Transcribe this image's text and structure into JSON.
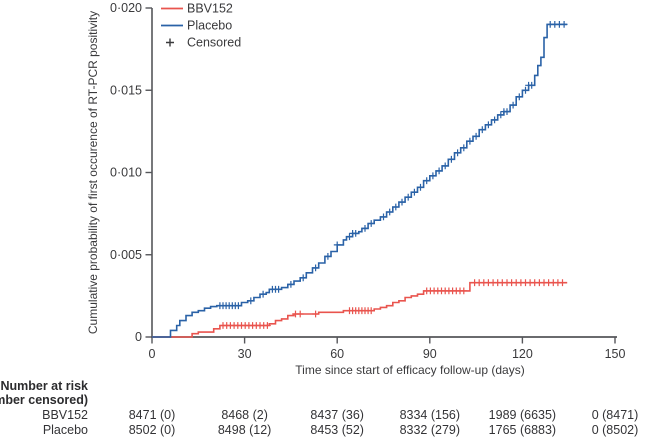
{
  "chart_data": {
    "type": "line",
    "subtype": "kaplan-meier-step",
    "title": "",
    "xlabel": "Time since start of efficacy follow-up (days)",
    "ylabel": "Cumulative probability of first occurence of RT-PCR positivity",
    "xlim": [
      0,
      150
    ],
    "ylim": [
      0,
      0.02
    ],
    "grid": false,
    "legend_position": "top-left-inside",
    "censored_label": "Censored",
    "censored_marker": "+",
    "xticks": [
      {
        "v": 0,
        "label": "0"
      },
      {
        "v": 30,
        "label": "30"
      },
      {
        "v": 60,
        "label": "60"
      },
      {
        "v": 90,
        "label": "90"
      },
      {
        "v": 120,
        "label": "120"
      },
      {
        "v": 150,
        "label": "150"
      }
    ],
    "yticks": [
      {
        "v": 0,
        "label": "0"
      },
      {
        "v": 0.005,
        "label": "0·005"
      },
      {
        "v": 0.01,
        "label": "0·010"
      },
      {
        "v": 0.015,
        "label": "0·015"
      },
      {
        "v": 0.02,
        "label": "0·020"
      }
    ],
    "series": [
      {
        "name": "BBV152",
        "color": "#e9544e",
        "steps": [
          [
            0,
            0
          ],
          [
            13,
            0.0002
          ],
          [
            15,
            0.0003
          ],
          [
            20,
            0.0005
          ],
          [
            22,
            0.0007
          ],
          [
            38,
            0.0008
          ],
          [
            40,
            0.001
          ],
          [
            42,
            0.0011
          ],
          [
            44,
            0.0013
          ],
          [
            46,
            0.0014
          ],
          [
            54,
            0.0015
          ],
          [
            62,
            0.0016
          ],
          [
            72,
            0.0017
          ],
          [
            74,
            0.0018
          ],
          [
            76,
            0.0019
          ],
          [
            78,
            0.0021
          ],
          [
            80,
            0.0022
          ],
          [
            82,
            0.0024
          ],
          [
            84,
            0.0025
          ],
          [
            86,
            0.0026
          ],
          [
            88,
            0.0028
          ],
          [
            103,
            0.0033
          ],
          [
            134.5,
            0.0033
          ]
        ],
        "censor_days": [
          23,
          24.2,
          25.4,
          26.6,
          27.8,
          29,
          30.2,
          31.4,
          32.6,
          33.8,
          35,
          36.2,
          37.4,
          46.5,
          48,
          53,
          64,
          65,
          66,
          67,
          68,
          69,
          70,
          71,
          89,
          90.2,
          91.4,
          92.6,
          93.8,
          95,
          96.2,
          97.4,
          98.6,
          99.8,
          101,
          104.5,
          106,
          107.5,
          109,
          110.5,
          112,
          113.5,
          115,
          116.5,
          118,
          119.5,
          121,
          122.5,
          124,
          125.5,
          127,
          128.5,
          130,
          131.5,
          133
        ]
      },
      {
        "name": "Placebo",
        "color": "#2a62a7",
        "steps": [
          [
            0,
            0
          ],
          [
            6,
            0.0004
          ],
          [
            8,
            0.0007
          ],
          [
            9,
            0.001
          ],
          [
            11,
            0.0013
          ],
          [
            13,
            0.0015
          ],
          [
            15,
            0.0016
          ],
          [
            17,
            0.00175
          ],
          [
            19,
            0.00185
          ],
          [
            21,
            0.0019
          ],
          [
            29,
            0.0021
          ],
          [
            31,
            0.0022
          ],
          [
            33,
            0.0024
          ],
          [
            35,
            0.0026
          ],
          [
            37,
            0.0027
          ],
          [
            38,
            0.0029
          ],
          [
            42,
            0.003
          ],
          [
            44,
            0.0032
          ],
          [
            46,
            0.0034
          ],
          [
            48,
            0.0036
          ],
          [
            50,
            0.0039
          ],
          [
            52,
            0.0042
          ],
          [
            54,
            0.0045
          ],
          [
            56,
            0.0049
          ],
          [
            58,
            0.0052
          ],
          [
            60,
            0.0056
          ],
          [
            62,
            0.0059
          ],
          [
            63,
            0.0061
          ],
          [
            65,
            0.0063
          ],
          [
            67,
            0.0064
          ],
          [
            68,
            0.0066
          ],
          [
            70,
            0.0069
          ],
          [
            72,
            0.0071
          ],
          [
            74,
            0.0073
          ],
          [
            76,
            0.0076
          ],
          [
            78,
            0.0079
          ],
          [
            80,
            0.0082
          ],
          [
            82,
            0.0085
          ],
          [
            84,
            0.0088
          ],
          [
            86,
            0.0091
          ],
          [
            88,
            0.0095
          ],
          [
            90,
            0.0098
          ],
          [
            92,
            0.0101
          ],
          [
            94,
            0.0104
          ],
          [
            96,
            0.0108
          ],
          [
            98,
            0.0112
          ],
          [
            100,
            0.0115
          ],
          [
            102,
            0.0119
          ],
          [
            104,
            0.0122
          ],
          [
            106,
            0.0126
          ],
          [
            108,
            0.0129
          ],
          [
            110,
            0.0132
          ],
          [
            112,
            0.0135
          ],
          [
            114,
            0.0137
          ],
          [
            116,
            0.0141
          ],
          [
            118,
            0.0146
          ],
          [
            120,
            0.015
          ],
          [
            122,
            0.0153
          ],
          [
            124,
            0.0159
          ],
          [
            125,
            0.0165
          ],
          [
            126,
            0.017
          ],
          [
            127,
            0.0182
          ],
          [
            128,
            0.019
          ],
          [
            134.5,
            0.019
          ]
        ],
        "censor_days": [
          22,
          23,
          24,
          25,
          26,
          27,
          28,
          32,
          36,
          39,
          40,
          41,
          45,
          49,
          53,
          57,
          60,
          64,
          65,
          66,
          69,
          71,
          75,
          77,
          79,
          81,
          83,
          85,
          87,
          89,
          91,
          93,
          95,
          97,
          99,
          101,
          103,
          105,
          107,
          109,
          111,
          113,
          114,
          115,
          117,
          119,
          121,
          122,
          123,
          129,
          130.5,
          132,
          133.5
        ]
      }
    ]
  },
  "risk_table": {
    "header_line1": "Number at risk",
    "header_line2": "(number censored)",
    "columns_days": [
      0,
      30,
      60,
      90,
      120,
      150
    ],
    "rows": [
      {
        "label": "BBV152",
        "values": [
          "8471 (0)",
          "8468 (2)",
          "8437 (36)",
          "8334 (156)",
          "1989 (6635)",
          "0 (8471)"
        ]
      },
      {
        "label": "Placebo",
        "values": [
          "8502 (0)",
          "8498 (12)",
          "8453 (52)",
          "8332 (279)",
          "1765 (6883)",
          "0 (8502)"
        ]
      }
    ]
  }
}
